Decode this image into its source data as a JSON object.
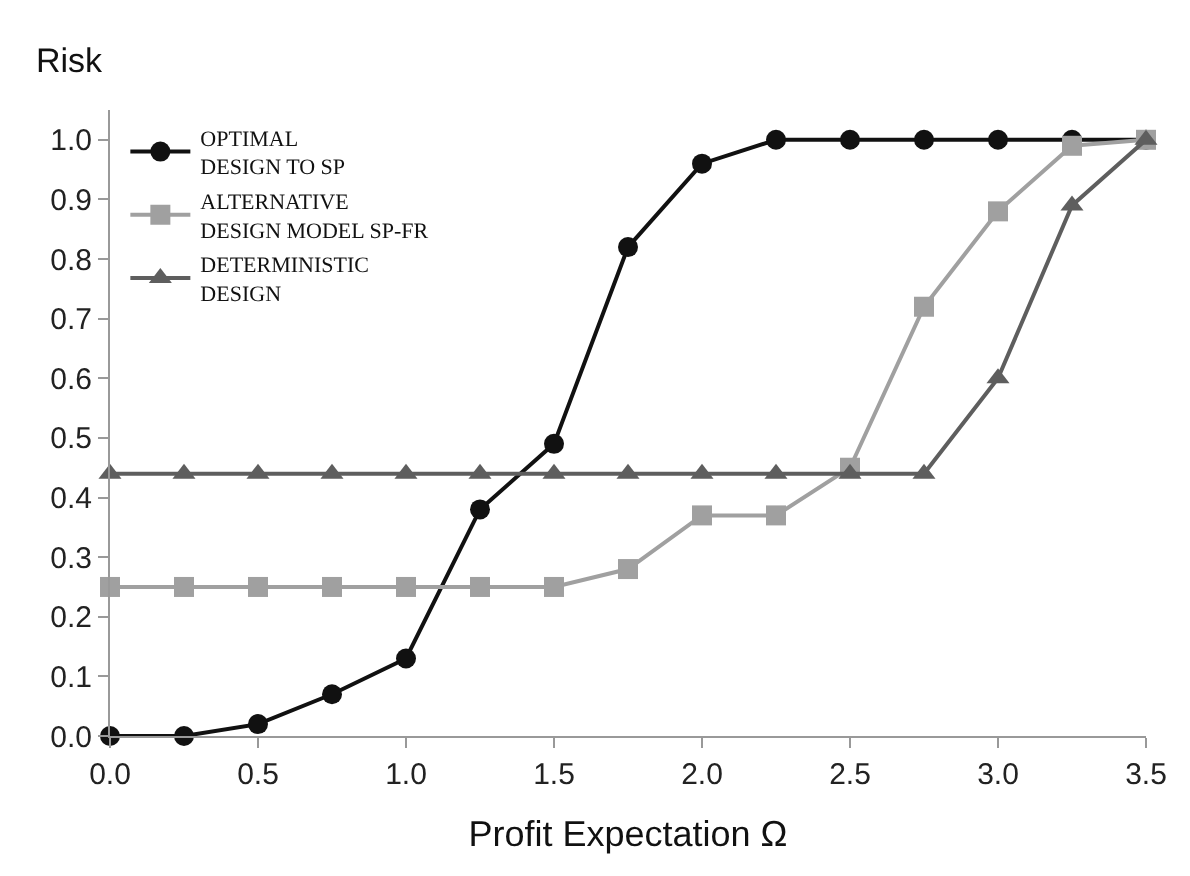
{
  "chart_data": {
    "type": "line",
    "xlabel": "Profit Expectation Ω",
    "ylabel": "Risk",
    "x": [
      0,
      0.25,
      0.5,
      0.75,
      1.0,
      1.25,
      1.5,
      1.75,
      2.0,
      2.25,
      2.5,
      2.75,
      3.0,
      3.25,
      3.5
    ],
    "series": [
      {
        "name": "OPTIMAL\nDESIGN TO SP",
        "color": "#111111",
        "marker": "circle",
        "values": [
          0,
          0,
          0.02,
          0.07,
          0.13,
          0.38,
          0.49,
          0.82,
          0.96,
          1.0,
          1.0,
          1.0,
          1.0,
          1.0,
          1.0
        ]
      },
      {
        "name": "ALTERNATIVE\nDESIGN MODEL SP-FR",
        "color": "#a0a0a0",
        "marker": "square",
        "values": [
          0.25,
          0.25,
          0.25,
          0.25,
          0.25,
          0.25,
          0.25,
          0.28,
          0.37,
          0.37,
          0.45,
          0.72,
          0.88,
          0.99,
          1.0
        ]
      },
      {
        "name": "DETERMINISTIC\nDESIGN",
        "color": "#5e5e5e",
        "marker": "triangle",
        "values": [
          0.44,
          0.44,
          0.44,
          0.44,
          0.44,
          0.44,
          0.44,
          0.44,
          0.44,
          0.44,
          0.44,
          0.44,
          0.6,
          0.89,
          1.0
        ]
      }
    ],
    "xlim": [
      0,
      3.5
    ],
    "xticks": [
      {
        "value": 0,
        "label": "0.0"
      },
      0.5,
      {
        "value": 1,
        "label": "1.0"
      },
      1.5,
      {
        "value": 2,
        "label": "2.0"
      },
      2.5,
      {
        "value": 3,
        "label": "3.0"
      },
      3.5
    ],
    "ylim": [
      0,
      1.05
    ],
    "yticks": [
      {
        "value": 0,
        "label": "0.0"
      },
      0.1,
      0.2,
      0.3,
      0.4,
      0.5,
      0.6,
      0.7,
      0.8,
      0.9,
      {
        "value": 1,
        "label": "1.0"
      }
    ],
    "legend": "top left",
    "line_style": "solid"
  }
}
